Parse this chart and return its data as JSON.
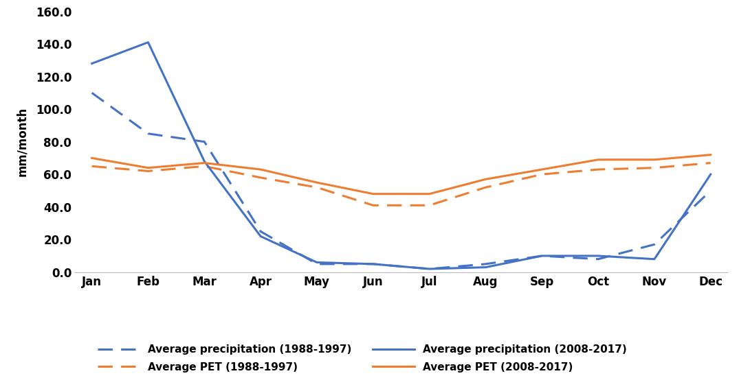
{
  "months": [
    "Jan",
    "Feb",
    "Mar",
    "Apr",
    "May",
    "Jun",
    "Jul",
    "Aug",
    "Sep",
    "Oct",
    "Nov",
    "Dec"
  ],
  "precip_1988_1997": [
    110,
    85,
    80,
    25,
    5,
    5,
    2,
    5,
    10,
    8,
    17,
    50
  ],
  "pet_1988_1997": [
    65,
    62,
    65,
    58,
    52,
    41,
    41,
    52,
    60,
    63,
    64,
    67
  ],
  "precip_2008_2017": [
    128,
    141,
    68,
    22,
    6,
    5,
    2,
    3,
    10,
    10,
    8,
    60
  ],
  "pet_2008_2017": [
    70,
    64,
    67,
    63,
    55,
    48,
    48,
    57,
    63,
    69,
    69,
    72
  ],
  "ylim": [
    0,
    160
  ],
  "yticks": [
    0.0,
    20.0,
    40.0,
    60.0,
    80.0,
    100.0,
    120.0,
    140.0,
    160.0
  ],
  "ylabel": "mm/month",
  "color_blue": "#4472C4",
  "color_orange": "#ED7D31",
  "legend_labels": [
    "Average precipitation (1988-1997)",
    "Average PET (1988-1997)",
    "Average precipitation (2008-2017)",
    "Average PET (2008-2017)"
  ]
}
